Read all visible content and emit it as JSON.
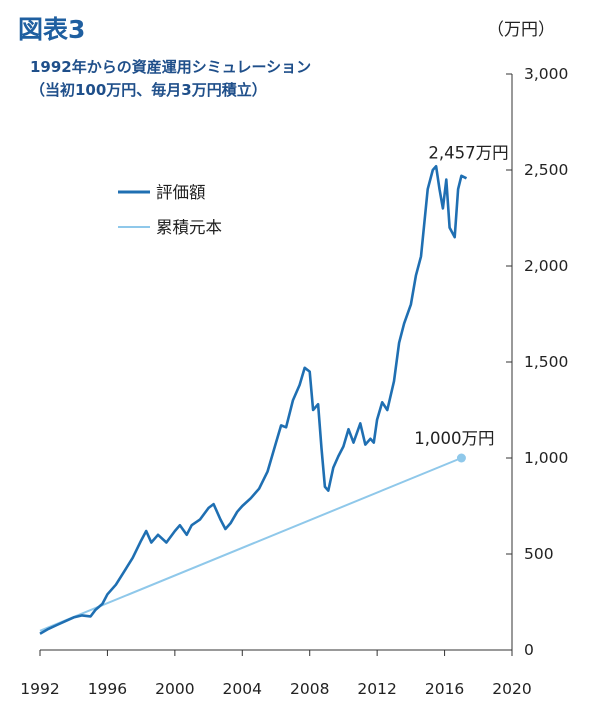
{
  "header": {
    "figure_label": "図表3",
    "title_line1": "1992年からの資産運用シミュレーション",
    "title_line2": "（当初100万円、毎月3万円積立）"
  },
  "chart_data": {
    "type": "line",
    "unit_label": "（万円）",
    "xlabel": "",
    "ylabel": "",
    "xlim": [
      1992,
      2020
    ],
    "ylim": [
      0,
      3000
    ],
    "x_ticks": [
      1992,
      1996,
      2000,
      2004,
      2008,
      2012,
      2016,
      2020
    ],
    "x_tick_labels": [
      "1992",
      "1996",
      "2000",
      "2004",
      "2008",
      "2012",
      "2016",
      "2020"
    ],
    "y_ticks": [
      0,
      500,
      1000,
      1500,
      2000,
      2500,
      3000
    ],
    "y_tick_labels": [
      "0",
      "500",
      "1,000",
      "1,500",
      "2,000",
      "2,500",
      "3,000"
    ],
    "grid": false,
    "legend_position": "upper-left",
    "series": [
      {
        "name": "評価額",
        "color": "#1f6fb2",
        "x": [
          1992.0,
          1992.5,
          1993.0,
          1993.5,
          1994.0,
          1994.5,
          1995.0,
          1995.3,
          1995.7,
          1996.0,
          1996.5,
          1997.0,
          1997.5,
          1998.0,
          1998.3,
          1998.6,
          1999.0,
          1999.5,
          2000.0,
          2000.3,
          2000.7,
          2001.0,
          2001.5,
          2002.0,
          2002.3,
          2002.7,
          2003.0,
          2003.3,
          2003.7,
          2004.0,
          2004.5,
          2005.0,
          2005.5,
          2006.0,
          2006.3,
          2006.6,
          2007.0,
          2007.4,
          2007.7,
          2008.0,
          2008.2,
          2008.5,
          2008.7,
          2008.9,
          2009.1,
          2009.4,
          2009.7,
          2010.0,
          2010.3,
          2010.6,
          2011.0,
          2011.3,
          2011.6,
          2011.8,
          2012.0,
          2012.3,
          2012.6,
          2013.0,
          2013.3,
          2013.6,
          2014.0,
          2014.3,
          2014.6,
          2015.0,
          2015.3,
          2015.5,
          2015.7,
          2015.9,
          2016.1,
          2016.3,
          2016.6,
          2016.8,
          2017.0,
          2017.3
        ],
        "values": [
          85,
          110,
          130,
          150,
          170,
          180,
          175,
          210,
          240,
          290,
          340,
          410,
          480,
          570,
          620,
          560,
          600,
          560,
          620,
          650,
          600,
          650,
          680,
          740,
          760,
          680,
          630,
          660,
          720,
          750,
          790,
          840,
          930,
          1080,
          1170,
          1160,
          1300,
          1380,
          1470,
          1450,
          1250,
          1280,
          1050,
          850,
          830,
          950,
          1010,
          1060,
          1150,
          1080,
          1180,
          1070,
          1100,
          1080,
          1200,
          1290,
          1250,
          1400,
          1600,
          1700,
          1800,
          1950,
          2050,
          2400,
          2500,
          2520,
          2400,
          2300,
          2450,
          2200,
          2150,
          2400,
          2470,
          2457
        ]
      },
      {
        "name": "累積元本",
        "color": "#8fc8ea",
        "x": [
          1992.0,
          2017.0
        ],
        "values": [
          100,
          1000
        ]
      }
    ],
    "annotations": [
      {
        "text": "2,457万円",
        "series": "評価額",
        "x": 2017.3,
        "y": 2457
      },
      {
        "text": "1,000万円",
        "series": "累積元本",
        "x": 2017.0,
        "y": 1000
      }
    ]
  }
}
